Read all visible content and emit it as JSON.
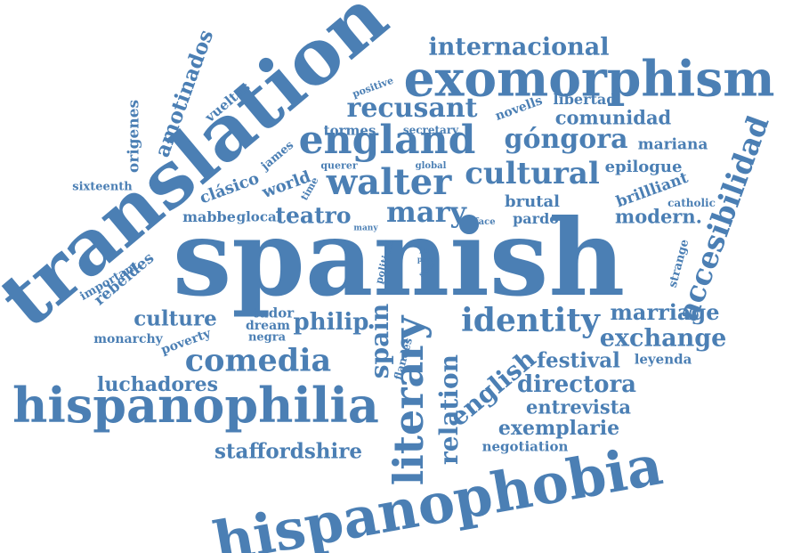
{
  "colors": {
    "text": "#4b7fb4",
    "background": "#ffffff"
  },
  "words": {
    "spanish": "spanish",
    "translation": "translation",
    "exomorphism": "exomorphism",
    "hispanophilia": "hispanophilia",
    "hispanophobia": "hispanophobia",
    "england": "england",
    "walter": "walter",
    "cultural": "cultural",
    "recusant": "recusant",
    "gongora": "góngora",
    "internacional": "internacional",
    "comedia": "comedia",
    "literary": "literary",
    "identity": "identity",
    "mary": "mary",
    "teatro": "teatro",
    "philip": "philip",
    "spain": "spain",
    "relation": "relation",
    "english": "english",
    "exchange": "exchange",
    "marriage": "marriage",
    "accesibilidad": "accesibilidad",
    "directora": "directora",
    "festival": "festival",
    "entrevista": "entrevista",
    "exemplarie": "exemplarie",
    "staffordshire": "staffordshire",
    "luchadores": "luchadores",
    "culture": "culture",
    "amotinados": "amotinados",
    "origenes": "origenes",
    "rebeldes": "rebeldes",
    "comunidad": "comunidad",
    "libertad": "libertad",
    "novells": "novells",
    "mariana": "mariana",
    "epilogue": "epilogue",
    "brilliant": "brillliant",
    "catholic": "catholic",
    "modern": "modern.",
    "brutal": "brutal",
    "pardo": "pardo",
    "clasico": "clásico",
    "world": "world",
    "mabbe": "mabbe",
    "glocal": "glocal",
    "james": "james",
    "tormes": "tormes",
    "secretary": "secretary",
    "positive": "positive",
    "vueltas": "vueltas",
    "sixteenth": "sixteenth",
    "important": "important",
    "monarchy": "monarchy",
    "poverty": "poverty",
    "tudor": "tudor",
    "dream": "dream",
    "negra": "negra",
    "flandes": "flandes",
    "political": "political",
    "leyenda": "leyenda",
    "negotiation": "negotiation",
    "strange": "strange",
    "time": "time",
    "querer": "querer",
    "global": "global",
    "face": "face",
    "many": "many",
    "lui": "lui",
    "para": "para",
    "state": "state"
  }
}
